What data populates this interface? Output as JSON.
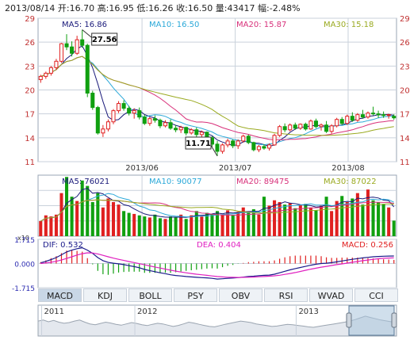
{
  "header": {
    "date": "2013/08/14",
    "open_label": "开",
    "open": "16.70",
    "high_label": "高",
    "high": "16.95",
    "low_label": "低",
    "low": "16.26",
    "close_label": "收",
    "close": "16.50",
    "volume_label": "量",
    "volume": "43417",
    "change_label": "幅",
    "change": "-2.48%"
  },
  "colors": {
    "up": "#e02020",
    "down": "#10a010",
    "ma5": "#1a1a7a",
    "ma10": "#2aa8d8",
    "ma20": "#d8307a",
    "ma30": "#9aaa20",
    "dif": "#1a1a8a",
    "dea": "#e020c0",
    "grid": "#c9d1db",
    "border": "#9aa6b4"
  },
  "price_panel": {
    "legend": [
      {
        "label": "MA5: 16.86",
        "color_key": "ma5"
      },
      {
        "label": "MA10: 16.50",
        "color_key": "ma10"
      },
      {
        "label": "MA20: 15.87",
        "color_key": "ma20"
      },
      {
        "label": "MA30: 15.18",
        "color_key": "ma30"
      }
    ],
    "y_ticks": [
      "29",
      "26",
      "23",
      "20",
      "17",
      "14",
      "11"
    ],
    "x_ticks": [
      "2013/06",
      "2013/07",
      "2013/08"
    ],
    "annotations": {
      "max": "27.56",
      "min": "11.71"
    }
  },
  "volume_panel": {
    "legend": [
      {
        "label": "MA5: 76021",
        "color_key": "ma5"
      },
      {
        "label": "MA10: 90077",
        "color_key": "ma10"
      },
      {
        "label": "MA20: 89475",
        "color_key": "ma20"
      },
      {
        "label": "MA30: 87022",
        "color_key": "ma30"
      }
    ],
    "unit": "x10"
  },
  "macd_panel": {
    "dif_label": "DIF: 0.532",
    "dea_label": "DEA: 0.404",
    "macd_label": "MACD: 0.256",
    "y_ticks": [
      "1.715",
      "0.000",
      "-1.715"
    ]
  },
  "tabs": [
    "MACD",
    "KDJ",
    "BOLL",
    "PSY",
    "OBV",
    "RSI",
    "WVAD",
    "CCI"
  ],
  "active_tab": "MACD",
  "navigator": {
    "years": [
      "2011",
      "2012",
      "2013"
    ]
  },
  "chart_data": {
    "type": "candlestick",
    "title": "",
    "x_ticks": [
      "2013/06",
      "2013/07",
      "2013/08"
    ],
    "ylim": [
      11,
      29
    ],
    "candles": [
      [
        21.3,
        21.9,
        20.9,
        21.7
      ],
      [
        21.7,
        22.3,
        21.4,
        22.1
      ],
      [
        22.1,
        23.0,
        21.8,
        22.8
      ],
      [
        22.8,
        23.9,
        22.5,
        23.6
      ],
      [
        23.6,
        25.9,
        23.4,
        25.8
      ],
      [
        25.8,
        27.0,
        25.0,
        25.4
      ],
      [
        25.4,
        26.1,
        24.2,
        24.6
      ],
      [
        24.6,
        26.8,
        24.4,
        26.3
      ],
      [
        26.3,
        27.56,
        25.3,
        25.6
      ],
      [
        25.6,
        25.8,
        19.1,
        19.6
      ],
      [
        19.6,
        19.9,
        17.5,
        17.8
      ],
      [
        17.8,
        18.0,
        14.4,
        14.6
      ],
      [
        14.6,
        15.6,
        14.1,
        15.1
      ],
      [
        15.1,
        16.3,
        14.8,
        16.0
      ],
      [
        16.0,
        17.6,
        15.7,
        17.4
      ],
      [
        17.4,
        18.6,
        17.1,
        18.3
      ],
      [
        18.3,
        18.7,
        17.4,
        17.7
      ],
      [
        17.7,
        18.0,
        16.8,
        17.1
      ],
      [
        17.1,
        17.7,
        16.4,
        17.4
      ],
      [
        17.4,
        17.8,
        16.3,
        16.6
      ],
      [
        16.6,
        16.9,
        15.6,
        15.8
      ],
      [
        15.8,
        16.6,
        15.5,
        16.4
      ],
      [
        16.4,
        16.8,
        15.9,
        16.2
      ],
      [
        16.2,
        16.4,
        15.2,
        15.5
      ],
      [
        15.5,
        16.2,
        15.3,
        15.9
      ],
      [
        15.9,
        16.3,
        15.0,
        15.2
      ],
      [
        15.2,
        15.6,
        14.7,
        15.0
      ],
      [
        15.0,
        15.5,
        14.6,
        15.3
      ],
      [
        15.3,
        15.4,
        14.3,
        14.6
      ],
      [
        14.6,
        15.2,
        14.4,
        15.0
      ],
      [
        15.0,
        15.3,
        14.1,
        14.4
      ],
      [
        14.4,
        14.9,
        13.9,
        14.7
      ],
      [
        14.7,
        14.8,
        13.7,
        14.0
      ],
      [
        14.0,
        14.2,
        12.9,
        13.2
      ],
      [
        13.2,
        13.6,
        11.71,
        12.3
      ],
      [
        12.3,
        13.3,
        12.0,
        13.1
      ],
      [
        13.1,
        13.9,
        12.8,
        13.6
      ],
      [
        13.6,
        13.8,
        12.7,
        13.0
      ],
      [
        13.0,
        13.8,
        12.6,
        13.6
      ],
      [
        13.6,
        14.4,
        13.4,
        14.2
      ],
      [
        14.2,
        14.4,
        13.2,
        13.4
      ],
      [
        13.4,
        13.5,
        12.3,
        12.5
      ],
      [
        12.5,
        13.1,
        12.2,
        12.9
      ],
      [
        12.9,
        13.2,
        12.5,
        12.7
      ],
      [
        12.7,
        13.3,
        12.4,
        13.1
      ],
      [
        13.1,
        14.5,
        13.0,
        14.3
      ],
      [
        14.3,
        15.6,
        14.1,
        15.4
      ],
      [
        15.4,
        15.8,
        14.7,
        15.0
      ],
      [
        15.0,
        15.8,
        14.8,
        15.6
      ],
      [
        15.6,
        15.9,
        15.0,
        15.2
      ],
      [
        15.2,
        15.8,
        15.0,
        15.7
      ],
      [
        15.7,
        15.9,
        14.9,
        15.1
      ],
      [
        15.1,
        16.3,
        15.0,
        16.1
      ],
      [
        16.1,
        16.4,
        15.2,
        15.4
      ],
      [
        15.4,
        15.8,
        14.9,
        15.6
      ],
      [
        15.6,
        16.1,
        14.6,
        14.8
      ],
      [
        14.8,
        15.7,
        14.5,
        15.5
      ],
      [
        15.5,
        16.5,
        15.3,
        16.3
      ],
      [
        16.3,
        16.6,
        15.6,
        15.8
      ],
      [
        15.8,
        16.9,
        15.6,
        16.7
      ],
      [
        16.7,
        17.2,
        16.0,
        16.2
      ],
      [
        16.2,
        17.1,
        16.0,
        16.9
      ],
      [
        16.9,
        17.5,
        16.4,
        16.6
      ],
      [
        16.6,
        17.3,
        16.4,
        17.1
      ],
      [
        17.1,
        17.9,
        16.8,
        17.0
      ],
      [
        17.0,
        17.4,
        16.5,
        16.9
      ],
      [
        16.9,
        17.3,
        16.5,
        16.8
      ],
      [
        16.8,
        17.0,
        16.4,
        16.9
      ],
      [
        16.7,
        16.95,
        16.26,
        16.5
      ]
    ],
    "volumes": [
      42,
      58,
      55,
      60,
      120,
      165,
      110,
      98,
      155,
      140,
      95,
      120,
      80,
      105,
      95,
      88,
      70,
      65,
      62,
      58,
      55,
      52,
      60,
      50,
      48,
      55,
      52,
      60,
      48,
      58,
      70,
      55,
      65,
      62,
      70,
      60,
      72,
      58,
      68,
      80,
      65,
      75,
      60,
      110,
      85,
      100,
      95,
      88,
      92,
      78,
      86,
      90,
      80,
      72,
      85,
      110,
      70,
      98,
      112,
      95,
      105,
      120,
      88,
      130,
      100,
      94,
      90,
      80,
      43.4
    ],
    "volume_ylim": [
      0,
      170
    ],
    "macd": {
      "ylim": [
        -1.715,
        1.715
      ],
      "dif": [
        0.05,
        0.15,
        0.28,
        0.42,
        0.62,
        0.82,
        0.95,
        1.05,
        1.12,
        0.95,
        0.72,
        0.42,
        0.2,
        0.08,
        0.02,
        -0.02,
        -0.08,
        -0.15,
        -0.22,
        -0.3,
        -0.42,
        -0.5,
        -0.58,
        -0.66,
        -0.72,
        -0.8,
        -0.85,
        -0.88,
        -0.92,
        -0.95,
        -0.98,
        -1.0,
        -1.02,
        -1.05,
        -1.1,
        -1.08,
        -1.05,
        -1.03,
        -1.0,
        -0.96,
        -0.92,
        -0.9,
        -0.86,
        -0.84,
        -0.82,
        -0.76,
        -0.66,
        -0.55,
        -0.45,
        -0.36,
        -0.28,
        -0.2,
        -0.12,
        -0.05,
        0.0,
        0.02,
        0.06,
        0.12,
        0.18,
        0.24,
        0.3,
        0.35,
        0.4,
        0.44,
        0.48,
        0.5,
        0.52,
        0.53,
        0.532
      ],
      "dea": [
        0.0,
        0.04,
        0.09,
        0.16,
        0.25,
        0.36,
        0.48,
        0.6,
        0.7,
        0.76,
        0.75,
        0.68,
        0.58,
        0.48,
        0.38,
        0.3,
        0.22,
        0.14,
        0.07,
        -0.01,
        -0.09,
        -0.17,
        -0.25,
        -0.32,
        -0.4,
        -0.47,
        -0.54,
        -0.6,
        -0.66,
        -0.71,
        -0.76,
        -0.8,
        -0.84,
        -0.88,
        -0.92,
        -0.95,
        -0.97,
        -0.98,
        -0.99,
        -0.98,
        -0.97,
        -0.96,
        -0.94,
        -0.92,
        -0.9,
        -0.87,
        -0.83,
        -0.77,
        -0.71,
        -0.64,
        -0.56,
        -0.48,
        -0.4,
        -0.33,
        -0.26,
        -0.2,
        -0.14,
        -0.08,
        -0.03,
        0.03,
        0.09,
        0.14,
        0.2,
        0.25,
        0.3,
        0.34,
        0.37,
        0.39,
        0.404
      ]
    },
    "navigator_series": [
      0.55,
      0.6,
      0.52,
      0.58,
      0.5,
      0.45,
      0.48,
      0.55,
      0.6,
      0.5,
      0.42,
      0.38,
      0.44,
      0.5,
      0.46,
      0.4,
      0.36,
      0.42,
      0.48,
      0.44,
      0.38,
      0.34,
      0.4,
      0.45,
      0.42,
      0.36,
      0.3,
      0.35,
      0.42,
      0.5,
      0.46,
      0.4,
      0.35,
      0.3,
      0.28,
      0.34,
      0.4,
      0.45,
      0.5,
      0.55,
      0.52,
      0.48,
      0.42,
      0.38,
      0.34,
      0.3,
      0.32,
      0.36,
      0.4,
      0.38,
      0.35,
      0.32,
      0.28,
      0.26,
      0.3,
      0.34,
      0.38,
      0.42,
      0.46,
      0.5,
      0.55,
      0.62,
      0.7,
      0.78,
      0.72,
      0.66,
      0.6,
      0.56,
      0.52,
      0.58
    ]
  }
}
